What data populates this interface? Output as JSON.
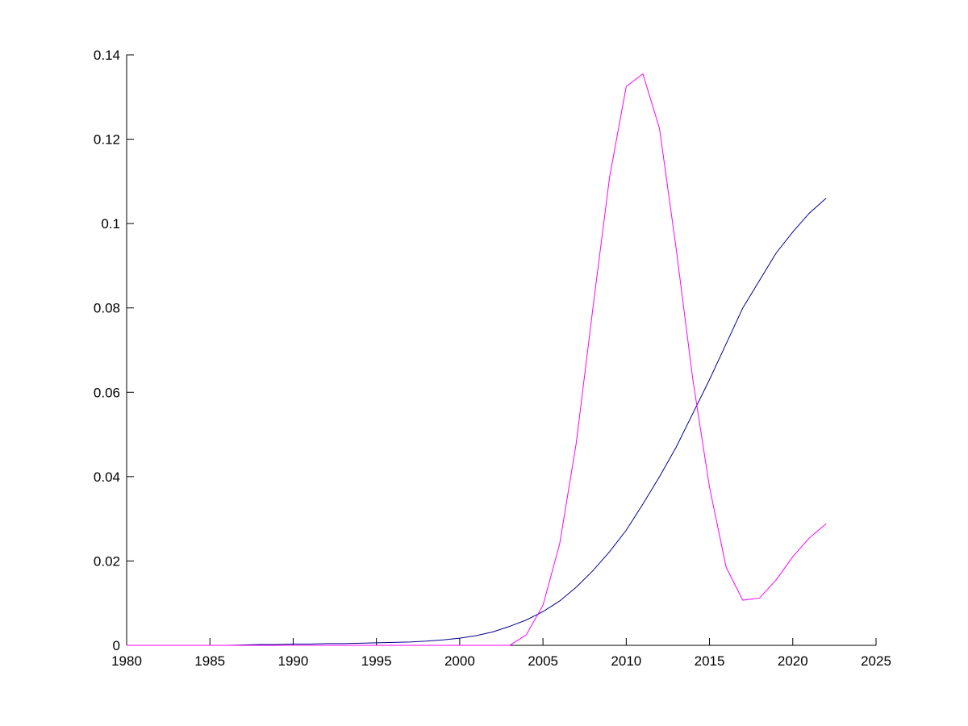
{
  "chart_data": {
    "type": "line",
    "x": [
      1980,
      1981,
      1982,
      1983,
      1984,
      1985,
      1986,
      1987,
      1988,
      1989,
      1990,
      1991,
      1992,
      1993,
      1994,
      1995,
      1996,
      1997,
      1998,
      1999,
      2000,
      2001,
      2002,
      2003,
      2004,
      2005,
      2006,
      2007,
      2008,
      2009,
      2010,
      2011,
      2012,
      2013,
      2014,
      2015,
      2016,
      2017,
      2018,
      2019,
      2020,
      2021,
      2022
    ],
    "series": [
      {
        "color": "#00008b",
        "values": [
          0,
          0,
          0,
          0,
          0,
          0,
          0,
          0.0001,
          0.0002,
          0.0002,
          0.0003,
          0.0003,
          0.0004,
          0.0004,
          0.0005,
          0.0006,
          0.0007,
          0.0008,
          0.001,
          0.0013,
          0.0017,
          0.0023,
          0.0032,
          0.0045,
          0.006,
          0.008,
          0.0105,
          0.0138,
          0.0177,
          0.0222,
          0.0273,
          0.0335,
          0.04,
          0.047,
          0.055,
          0.063,
          0.0715,
          0.08,
          0.0865,
          0.093,
          0.098,
          0.1025,
          0.106
        ]
      },
      {
        "color": "#ff00ff",
        "values": [
          0,
          0,
          0,
          0,
          0,
          0,
          0,
          0,
          0,
          0,
          0,
          0,
          0,
          0,
          0,
          0,
          0,
          0,
          0,
          0,
          0,
          0,
          0,
          0,
          0.0025,
          0.0095,
          0.024,
          0.048,
          0.08,
          0.111,
          0.1325,
          0.1355,
          0.1225,
          0.094,
          0.063,
          0.0375,
          0.0185,
          0.0107,
          0.0112,
          0.0155,
          0.021,
          0.0255,
          0.0288
        ]
      }
    ],
    "xlim": [
      1980,
      2025
    ],
    "xticks": [
      1980,
      1985,
      1990,
      1995,
      2000,
      2005,
      2010,
      2015,
      2020,
      2025
    ],
    "ylim": [
      0,
      0.14
    ],
    "yticks": [
      0,
      0.02,
      0.04,
      0.06,
      0.08,
      0.1,
      0.12,
      0.14
    ]
  }
}
